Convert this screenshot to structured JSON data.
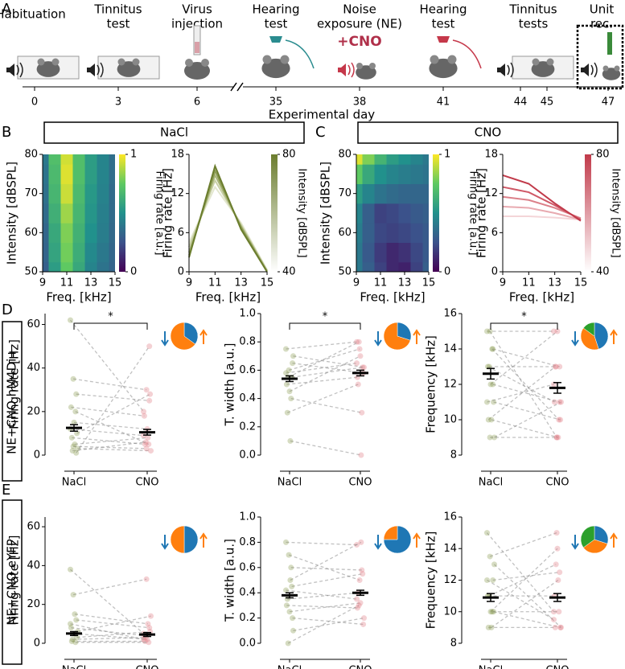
{
  "panel_labels": [
    "A",
    "B",
    "C",
    "D",
    "E"
  ],
  "row_labels": [
    "NE+CNO hM4Di+",
    "NE+CNO eYFP"
  ],
  "timeline": {
    "stages": [
      [
        "Habituation"
      ],
      [
        "Tinnitus",
        "test"
      ],
      [
        "Virus",
        "injection"
      ],
      [
        "Hearing",
        "test"
      ],
      [
        "Noise",
        "exposure (NE)"
      ],
      [
        "Hearing",
        "test"
      ],
      [
        "Tinnitus",
        "tests"
      ],
      [
        "Unit",
        "rec."
      ]
    ],
    "days": [
      0,
      3,
      6,
      35,
      38,
      41,
      44,
      45,
      47
    ],
    "xlabel": "Experimental day",
    "treatment": "+CNO"
  },
  "chart_data": [
    {
      "type": "heatmap",
      "title": "NaCl",
      "xlabel": "Freq. [kHz]",
      "ylabel": "Intensity [dBSPL]",
      "x": [
        9,
        10,
        11,
        12,
        13,
        14,
        15
      ],
      "y": [
        50,
        55,
        60,
        65,
        70,
        75,
        80
      ],
      "values": [
        [
          0.3,
          0.55,
          0.75,
          0.6,
          0.45,
          0.38,
          0.32
        ],
        [
          0.32,
          0.58,
          0.78,
          0.62,
          0.47,
          0.4,
          0.33
        ],
        [
          0.33,
          0.6,
          0.8,
          0.64,
          0.5,
          0.42,
          0.34
        ],
        [
          0.35,
          0.63,
          0.85,
          0.66,
          0.52,
          0.43,
          0.35
        ],
        [
          0.37,
          0.66,
          0.92,
          0.68,
          0.53,
          0.44,
          0.35
        ],
        [
          0.38,
          0.68,
          0.95,
          0.7,
          0.55,
          0.45,
          0.36
        ],
        [
          0.4,
          0.7,
          0.93,
          0.7,
          0.55,
          0.45,
          0.36
        ]
      ],
      "xlim": [
        9,
        15
      ],
      "ylim": [
        50,
        80
      ],
      "xticks": [
        9,
        11,
        13,
        15
      ],
      "yticks": [
        50,
        60,
        70,
        80
      ],
      "colorbar": {
        "label": "Firing rate [a.u.]",
        "lim": [
          0,
          1
        ],
        "ticks": [
          0,
          1
        ]
      }
    },
    {
      "type": "line",
      "xlabel": "Freq. [kHz]",
      "ylabel": "Firing rate [Hz]",
      "x": [
        9,
        11,
        13,
        15
      ],
      "series": [
        {
          "color": "#e3e7cf",
          "values": [
            4.5,
            13,
            7.5,
            0.3
          ]
        },
        {
          "color": "#c9d0a6",
          "values": [
            3.8,
            14,
            7.2,
            0.2
          ]
        },
        {
          "color": "#a9b57a",
          "values": [
            3,
            14.8,
            7,
            0.1
          ]
        },
        {
          "color": "#8a9a50",
          "values": [
            2.5,
            15.5,
            6.8,
            0
          ]
        },
        {
          "color": "#6b7d2e",
          "values": [
            2.2,
            16.2,
            6.5,
            0
          ]
        }
      ],
      "xlim": [
        9,
        15
      ],
      "ylim": [
        0,
        18
      ],
      "xticks": [
        9,
        11,
        13,
        15
      ],
      "yticks": [
        0,
        6,
        12,
        18
      ],
      "colorbar": {
        "label": "Intensity [dBSPL]",
        "lim": [
          40,
          80
        ],
        "ticks": [
          40,
          80
        ],
        "colors": [
          "#ffffff",
          "#6b7d2e"
        ]
      }
    },
    {
      "type": "heatmap",
      "title": "CNO",
      "xlabel": "Freq. [kHz]",
      "ylabel": "Intensity [dBSPL]",
      "x": [
        9,
        10,
        11,
        12,
        13,
        14,
        15
      ],
      "y": [
        50,
        55,
        60,
        65,
        70,
        75,
        80
      ],
      "values": [
        [
          0.4,
          0.3,
          0.2,
          0.12,
          0.1,
          0.2,
          0.3
        ],
        [
          0.4,
          0.28,
          0.18,
          0.12,
          0.15,
          0.22,
          0.28
        ],
        [
          0.42,
          0.3,
          0.22,
          0.2,
          0.22,
          0.25,
          0.28
        ],
        [
          0.45,
          0.3,
          0.2,
          0.22,
          0.25,
          0.28,
          0.3
        ],
        [
          0.55,
          0.45,
          0.38,
          0.35,
          0.33,
          0.33,
          0.33
        ],
        [
          0.75,
          0.6,
          0.5,
          0.45,
          0.42,
          0.4,
          0.38
        ],
        [
          0.95,
          0.8,
          0.65,
          0.55,
          0.5,
          0.45,
          0.4
        ]
      ],
      "xlim": [
        9,
        15
      ],
      "ylim": [
        50,
        80
      ],
      "xticks": [
        9,
        11,
        13,
        15
      ],
      "yticks": [
        50,
        60,
        70,
        80
      ],
      "colorbar": {
        "label": "Firing rate [a.u.]",
        "lim": [
          0,
          1
        ],
        "ticks": [
          0,
          1
        ]
      }
    },
    {
      "type": "line",
      "xlabel": "Freq. [kHz]",
      "ylabel": "Firing rate [Hz]",
      "x": [
        9,
        11,
        13,
        15
      ],
      "series": [
        {
          "color": "#f4d5d8",
          "values": [
            8.5,
            8.5,
            8.3,
            8
          ]
        },
        {
          "color": "#e8aab0",
          "values": [
            10,
            9.8,
            9,
            8
          ]
        },
        {
          "color": "#db8089",
          "values": [
            11.5,
            11,
            9.8,
            8.2
          ]
        },
        {
          "color": "#cf5866",
          "values": [
            13,
            12.2,
            10.2,
            8
          ]
        },
        {
          "color": "#c13a4a",
          "values": [
            14.8,
            13.5,
            10.5,
            7.8
          ]
        }
      ],
      "xlim": [
        9,
        15
      ],
      "ylim": [
        0,
        18
      ],
      "xticks": [
        9,
        11,
        13,
        15
      ],
      "yticks": [
        0,
        6,
        12,
        18
      ],
      "colorbar": {
        "label": "Intensity [dBSPL]",
        "lim": [
          40,
          80
        ],
        "ticks": [
          40,
          80
        ],
        "colors": [
          "#ffffff",
          "#c13a4a"
        ]
      }
    },
    {
      "type": "paired",
      "categories": [
        "NaCl",
        "CNO"
      ],
      "ylabel": "Firing rate [Hz]",
      "ylim": [
        0,
        65
      ],
      "yticks": [
        0,
        20,
        40,
        60
      ],
      "pairs": [
        [
          62,
          20
        ],
        [
          35,
          30
        ],
        [
          28,
          25
        ],
        [
          22,
          18
        ],
        [
          15,
          12
        ],
        [
          10,
          28
        ],
        [
          8,
          5
        ],
        [
          5,
          8
        ],
        [
          3,
          2
        ],
        [
          2,
          6
        ],
        [
          20,
          5
        ],
        [
          12,
          9
        ],
        [
          4,
          3
        ],
        [
          1,
          50
        ]
      ],
      "mean": [
        12.5,
        10.5
      ],
      "sem": [
        1.5,
        1.3
      ],
      "colors": [
        "#8a9a50",
        "#e07a85"
      ],
      "significance": "*",
      "pie": {
        "values": [
          35,
          65
        ],
        "colors": [
          "#1f77b4",
          "#ff7f0e"
        ]
      }
    },
    {
      "type": "paired",
      "categories": [
        "NaCl",
        "CNO"
      ],
      "ylabel": "T. width [a.u.]",
      "ylim": [
        0,
        1
      ],
      "yticks": [
        {
          "value": 0,
          "label": "0.0"
        },
        0.2,
        0.4,
        0.6,
        0.8,
        {
          "value": 1,
          "label": "1.0"
        }
      ],
      "pairs": [
        [
          0.75,
          0.8
        ],
        [
          0.6,
          0.75
        ],
        [
          0.55,
          0.62
        ],
        [
          0.5,
          0.55
        ],
        [
          0.45,
          0.7
        ],
        [
          0.65,
          0.58
        ],
        [
          0.3,
          0.5
        ],
        [
          0.1,
          0.0
        ],
        [
          0.7,
          0.62
        ],
        [
          0.55,
          0.8
        ],
        [
          0.4,
          0.3
        ],
        [
          0.58,
          0.65
        ]
      ],
      "mean": [
        0.54,
        0.58
      ],
      "sem": [
        0.02,
        0.02
      ],
      "colors": [
        "#8a9a50",
        "#e07a85"
      ],
      "significance": "*",
      "pie": {
        "values": [
          30,
          70
        ],
        "colors": [
          "#1f77b4",
          "#ff7f0e"
        ]
      }
    },
    {
      "type": "paired",
      "categories": [
        "NaCl",
        "CNO"
      ],
      "ylabel": "Frequency [kHz]",
      "ylim": [
        8,
        16
      ],
      "yticks": [
        8,
        10,
        12,
        14,
        16
      ],
      "pairs": [
        [
          15,
          15
        ],
        [
          15,
          9
        ],
        [
          14,
          13
        ],
        [
          13,
          11
        ],
        [
          12,
          15
        ],
        [
          11,
          10
        ],
        [
          10,
          13
        ],
        [
          10,
          9
        ],
        [
          9,
          11
        ],
        [
          13,
          13
        ],
        [
          14,
          10
        ],
        [
          11,
          12
        ],
        [
          9,
          9
        ],
        [
          12,
          11
        ]
      ],
      "mean": [
        12.6,
        11.8
      ],
      "sem": [
        0.3,
        0.3
      ],
      "colors": [
        "#8a9a50",
        "#e07a85"
      ],
      "significance": "*",
      "pie": {
        "values": [
          45,
          40,
          15
        ],
        "colors": [
          "#1f77b4",
          "#ff7f0e",
          "#2ca02c"
        ]
      }
    },
    {
      "type": "paired",
      "categories": [
        "NaCl",
        "CNO"
      ],
      "ylabel": "Firing rate [Hz]",
      "ylim": [
        0,
        65
      ],
      "yticks": [
        0,
        20,
        40,
        60
      ],
      "pairs": [
        [
          38,
          5
        ],
        [
          25,
          33
        ],
        [
          12,
          8
        ],
        [
          8,
          4
        ],
        [
          5,
          2
        ],
        [
          3,
          6
        ],
        [
          1,
          1
        ],
        [
          15,
          10
        ],
        [
          6,
          14
        ],
        [
          2,
          3
        ],
        [
          0.5,
          0.5
        ],
        [
          10,
          2
        ]
      ],
      "mean": [
        5,
        4.5
      ],
      "sem": [
        1,
        1
      ],
      "colors": [
        "#8a9a50",
        "#e07a85"
      ],
      "pie": {
        "values": [
          50,
          50
        ],
        "colors": [
          "#1f77b4",
          "#ff7f0e"
        ]
      }
    },
    {
      "type": "paired",
      "categories": [
        "NaCl",
        "CNO"
      ],
      "ylabel": "T. width [a.u.]",
      "ylim": [
        0,
        1
      ],
      "yticks": [
        {
          "value": 0,
          "label": "0.0"
        },
        0.2,
        0.4,
        0.6,
        0.8,
        {
          "value": 1,
          "label": "1.0"
        }
      ],
      "pairs": [
        [
          0.8,
          0.78
        ],
        [
          0.7,
          0.5
        ],
        [
          0.45,
          0.55
        ],
        [
          0.3,
          0.28
        ],
        [
          0.25,
          0.32
        ],
        [
          0.2,
          0.15
        ],
        [
          0.35,
          0.4
        ],
        [
          0.5,
          0.8
        ],
        [
          0.1,
          0.2
        ],
        [
          0.0,
          0.3
        ],
        [
          0.6,
          0.58
        ],
        [
          0.42,
          0.35
        ]
      ],
      "mean": [
        0.38,
        0.4
      ],
      "sem": [
        0.02,
        0.02
      ],
      "colors": [
        "#8a9a50",
        "#e07a85"
      ],
      "pie": {
        "values": [
          75,
          25
        ],
        "colors": [
          "#1f77b4",
          "#ff7f0e"
        ]
      }
    },
    {
      "type": "paired",
      "categories": [
        "NaCl",
        "CNO"
      ],
      "ylabel": "Frequency [kHz]",
      "ylim": [
        8,
        16
      ],
      "yticks": [
        8,
        10,
        12,
        14,
        16
      ],
      "pairs": [
        [
          15,
          10
        ],
        [
          13.5,
          15
        ],
        [
          12,
          12.5
        ],
        [
          11,
          11
        ],
        [
          10,
          14
        ],
        [
          10,
          9
        ],
        [
          9,
          9
        ],
        [
          9,
          12
        ],
        [
          13,
          9
        ],
        [
          11,
          13
        ],
        [
          10,
          10
        ],
        [
          12,
          9.5
        ]
      ],
      "mean": [
        10.9,
        10.9
      ],
      "sem": [
        0.25,
        0.25
      ],
      "colors": [
        "#8a9a50",
        "#e07a85"
      ],
      "pie": {
        "values": [
          30,
          35,
          35
        ],
        "colors": [
          "#1f77b4",
          "#ff7f0e",
          "#2ca02c"
        ]
      }
    }
  ]
}
